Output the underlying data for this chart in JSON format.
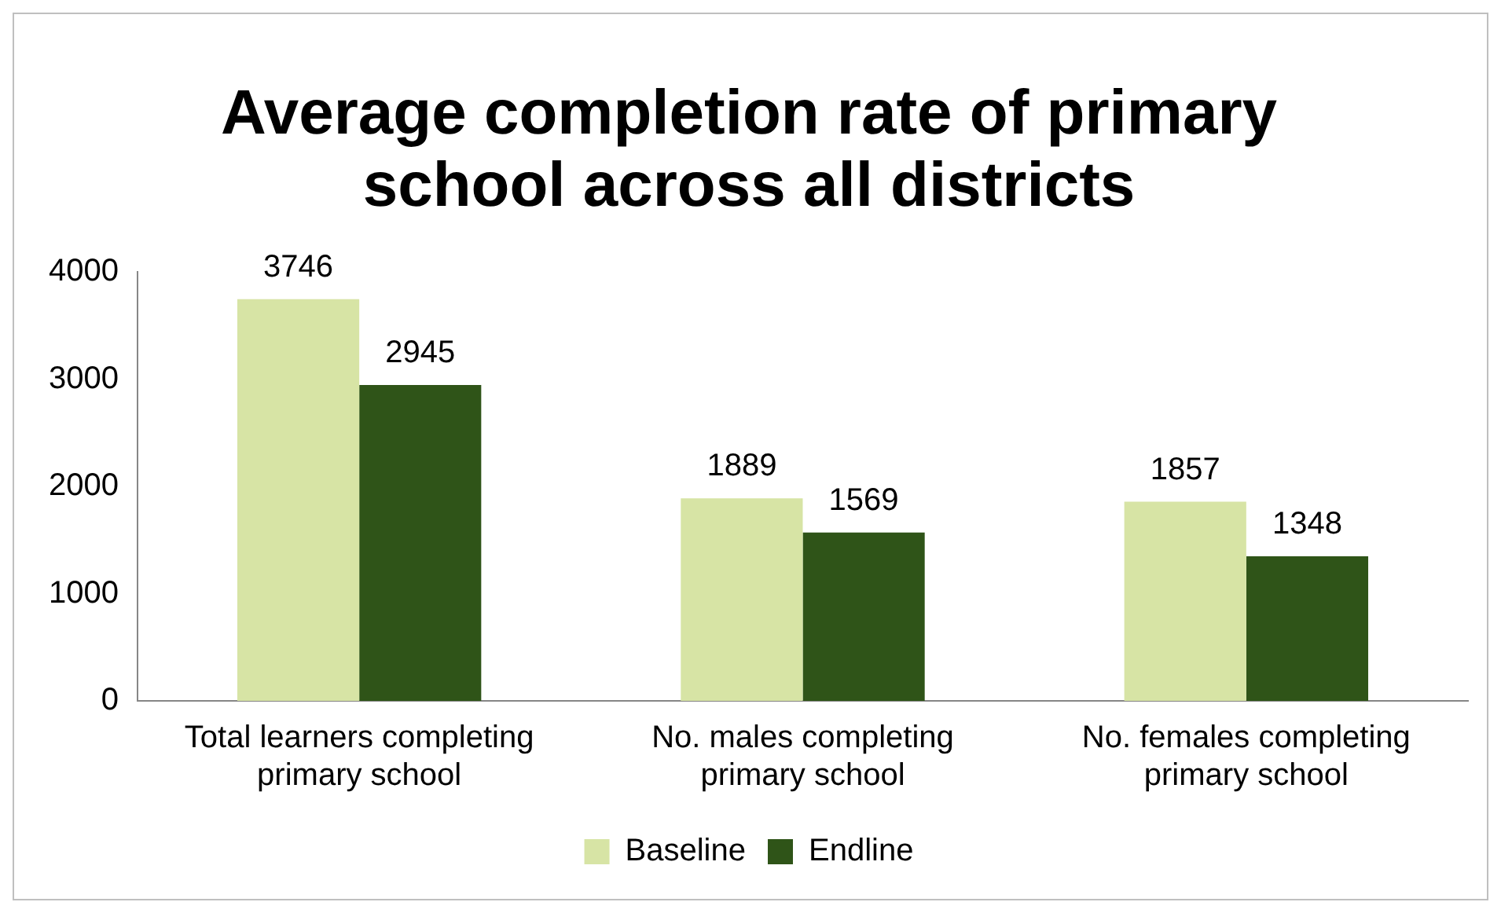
{
  "chart_data": {
    "type": "bar",
    "title": "Average completion rate of primary school across all districts",
    "categories": [
      "Total learners completing primary school",
      "No. males completing primary school",
      "No. females completing primary school"
    ],
    "series": [
      {
        "name": "Baseline",
        "color": "#d7e4a5",
        "values": [
          3746,
          1889,
          1857
        ]
      },
      {
        "name": "Endline",
        "color": "#2f5418",
        "values": [
          2945,
          1569,
          1348
        ]
      }
    ],
    "ylim": [
      0,
      4000
    ],
    "yticks": [
      0,
      1000,
      2000,
      3000,
      4000
    ],
    "grid": false,
    "legend": "bottom",
    "data_labels": true
  }
}
